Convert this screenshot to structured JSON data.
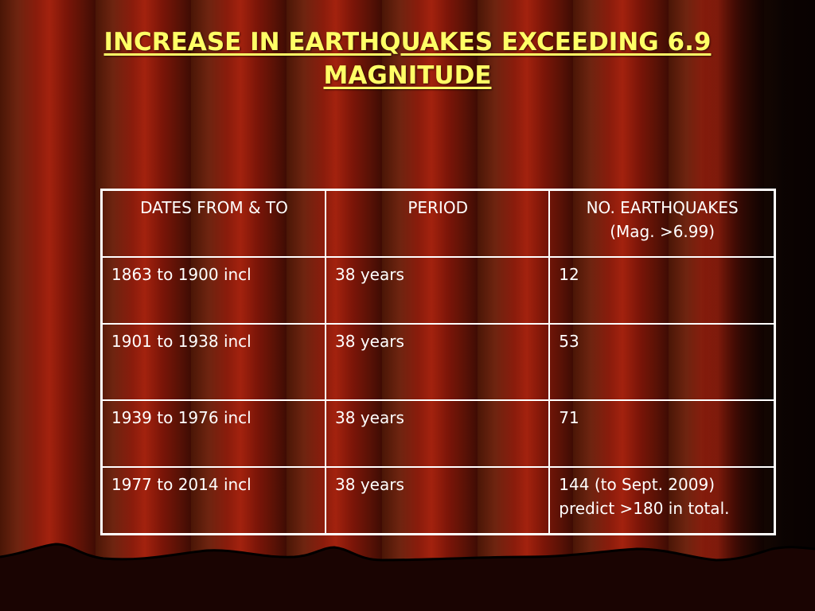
{
  "slide": {
    "title": "INCREASE IN EARTHQUAKES EXCEEDING 6.9 MAGNITUDE",
    "colors": {
      "title": "#ffff66",
      "table_text": "#ffffff",
      "curtain_red": "#a3220e",
      "curtain_dark": "#3f0c04"
    }
  },
  "table": {
    "headers": [
      [
        "DATES FROM & TO"
      ],
      [
        "PERIOD"
      ],
      [
        "NO. EARTHQUAKES",
        "(Mag. >6.99)"
      ]
    ],
    "rows": [
      {
        "dates": "1863 to 1900 incl",
        "period": "38 years",
        "count": [
          "12"
        ]
      },
      {
        "dates": "1901 to 1938 incl",
        "period": "38 years",
        "count": [
          "53"
        ]
      },
      {
        "dates": "1939 to 1976 incl",
        "period": "38 years",
        "count": [
          "71"
        ]
      },
      {
        "dates": "1977 to 2014 incl",
        "period": "38 years",
        "count": [
          "144 (to Sept. 2009)",
          "predict >180 in total."
        ]
      }
    ]
  }
}
